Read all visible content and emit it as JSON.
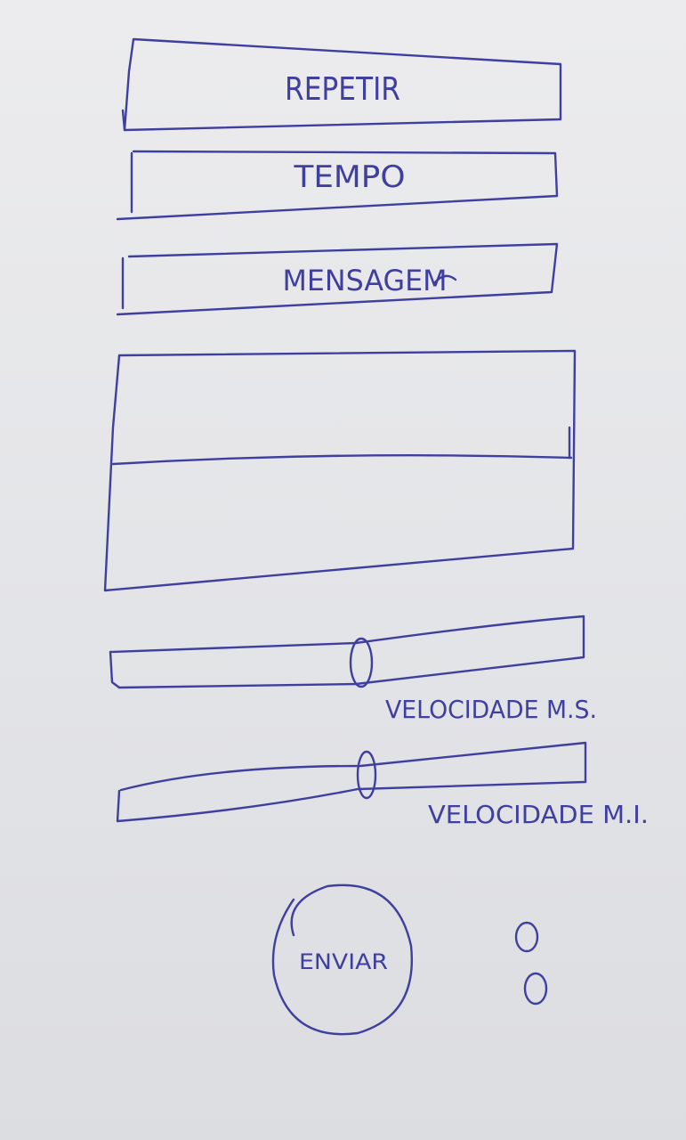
{
  "fields": {
    "repetir_label": "REPETIR",
    "tempo_label": "TEMPO",
    "mensagem_label": "MENSAGEM"
  },
  "sliders": {
    "speed_ms_label": "VELOCIDADE M.S.",
    "speed_ms_value": 0.54,
    "speed_mi_label": "VELOCIDADE M.I.",
    "speed_mi_value": 0.54
  },
  "actions": {
    "send_label": "ENVIAR"
  },
  "ink_color": "#3f3fa0"
}
